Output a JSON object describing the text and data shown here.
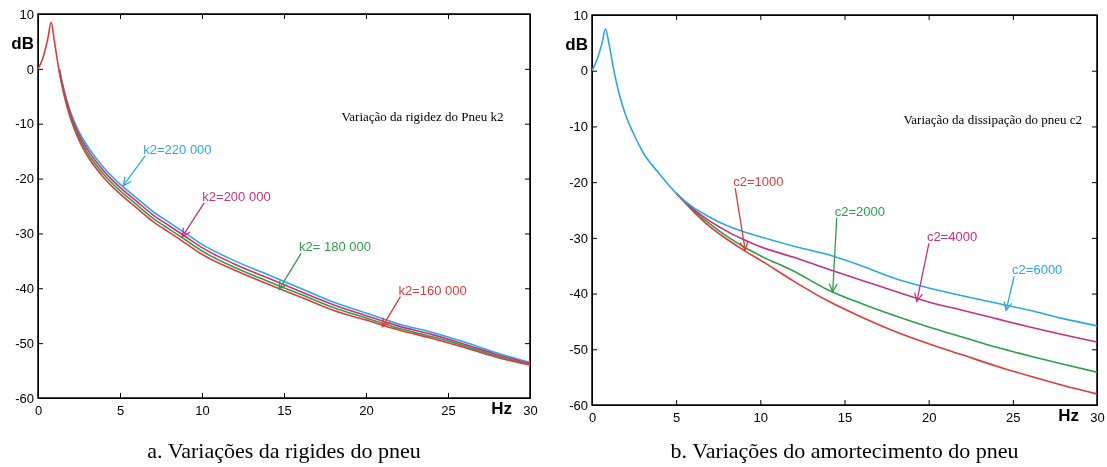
{
  "chart_data": [
    {
      "type": "line",
      "title": "a. Variações da rigides do pneu",
      "subtitle": "Variação da rigidez do Pneu k2",
      "xlabel": "Hz",
      "ylabel": "dB",
      "xlim": [
        0,
        30
      ],
      "ylim": [
        -60,
        10
      ],
      "xticks": [
        0,
        5,
        10,
        15,
        20,
        25,
        30
      ],
      "yticks": [
        -60,
        -50,
        -40,
        -30,
        -20,
        -10,
        0,
        10
      ],
      "marker": "none",
      "line_style": "solid",
      "x": [
        0,
        0.3,
        0.6,
        0.8,
        1,
        1.3,
        1.6,
        2,
        2.5,
        3,
        4,
        5,
        6,
        7,
        8,
        9,
        10,
        12,
        14,
        16,
        18,
        20,
        22,
        24,
        26,
        28,
        30
      ],
      "series": [
        {
          "color": "#2aa7e6",
          "values": [
            null,
            null,
            null,
            null,
            null,
            0,
            -4,
            -8,
            -11.5,
            -14,
            -18,
            -21,
            -23.5,
            -26,
            -28,
            -30,
            -32,
            -35,
            -37.5,
            -40,
            -42.5,
            -44.5,
            -46.5,
            -48,
            -49.8,
            -51.8,
            -53.5
          ]
        },
        {
          "color": "#c8307e",
          "values": [
            null,
            null,
            null,
            null,
            null,
            -0.2,
            -4.3,
            -8.4,
            -12,
            -14.6,
            -18.6,
            -21.6,
            -24.1,
            -26.6,
            -28.6,
            -30.6,
            -32.6,
            -35.6,
            -38.1,
            -40.6,
            -43,
            -45,
            -46.9,
            -48.4,
            -50.2,
            -52.1,
            -53.7
          ]
        },
        {
          "color": "#2e9e4a",
          "values": [
            null,
            null,
            null,
            null,
            null,
            -0.4,
            -4.6,
            -8.8,
            -12.5,
            -15.2,
            -19.2,
            -22.2,
            -24.7,
            -27.2,
            -29.2,
            -31.2,
            -33.2,
            -36.2,
            -38.7,
            -41.1,
            -43.5,
            -45.4,
            -47.3,
            -48.8,
            -50.5,
            -52.4,
            -53.9
          ]
        },
        {
          "color": "#e03a3a",
          "values": [
            0,
            2,
            5.5,
            8.5,
            5,
            -0.6,
            -4.9,
            -9.2,
            -13,
            -15.8,
            -19.8,
            -22.8,
            -25.3,
            -27.8,
            -29.8,
            -31.8,
            -33.8,
            -36.7,
            -39.2,
            -41.6,
            -44,
            -45.8,
            -47.6,
            -49.1,
            -50.8,
            -52.6,
            -54
          ]
        }
      ],
      "annotations": [
        {
          "text": "k2=220 000",
          "x": 5.2,
          "y": -21.3
        },
        {
          "text": "k2=200 000",
          "x": 8.8,
          "y": -30.6
        },
        {
          "text": "k2= 180 000",
          "x": 14.7,
          "y": -40.2
        },
        {
          "text": "k2=160 000",
          "x": 21,
          "y": -47
        }
      ]
    },
    {
      "type": "line",
      "title": "b. Variações do amortecimento do pneu",
      "subtitle": "Variação da dissipação do pneu c2",
      "xlabel": "Hz",
      "ylabel": "dB",
      "xlim": [
        0,
        30
      ],
      "ylim": [
        -60,
        10
      ],
      "xticks": [
        0,
        5,
        10,
        15,
        20,
        25,
        30
      ],
      "yticks": [
        -60,
        -50,
        -40,
        -30,
        -20,
        -10,
        0,
        10
      ],
      "marker": "none",
      "line_style": "solid",
      "x": [
        0,
        0.3,
        0.6,
        0.8,
        1,
        1.3,
        1.6,
        2,
        2.5,
        3,
        4,
        5,
        6,
        7,
        8,
        9,
        10,
        12,
        14,
        16,
        18,
        20,
        22,
        24,
        26,
        28,
        30
      ],
      "series": [
        {
          "color": "#e03a3a",
          "values": [
            null,
            null,
            null,
            null,
            null,
            null,
            null,
            null,
            null,
            null,
            null,
            -22,
            -25.2,
            -28,
            -30.2,
            -32.2,
            -34,
            -37.8,
            -41.3,
            -44.2,
            -46.8,
            -49,
            -51,
            -53,
            -54.8,
            -56.5,
            -58
          ]
        },
        {
          "color": "#2e9e4a",
          "values": [
            null,
            null,
            null,
            null,
            null,
            null,
            null,
            null,
            null,
            null,
            null,
            -22,
            -25,
            -27.5,
            -29.7,
            -31.6,
            -33.2,
            -36,
            -39.3,
            -41.8,
            -44,
            -46,
            -47.8,
            -49.6,
            -51.2,
            -52.7,
            -54.1
          ]
        },
        {
          "color": "#c8307e",
          "values": [
            null,
            null,
            null,
            null,
            null,
            null,
            null,
            null,
            null,
            null,
            null,
            -22,
            -24.8,
            -27,
            -28.8,
            -30.3,
            -31.6,
            -33.5,
            -35.6,
            -37.6,
            -39.6,
            -41.5,
            -43,
            -44.5,
            -46,
            -47.4,
            -48.7
          ]
        },
        {
          "color": "#2aa7e6",
          "values": [
            0,
            2,
            5,
            7.5,
            5,
            0,
            -4,
            -8,
            -11.5,
            -14.5,
            -18.5,
            -22,
            -24.5,
            -26.3,
            -27.8,
            -28.9,
            -29.8,
            -31.5,
            -33,
            -35,
            -37.3,
            -39,
            -40.4,
            -41.7,
            -43,
            -44.5,
            -45.8
          ]
        }
      ],
      "annotations": [
        {
          "text": "c2=1000",
          "x": 9.1,
          "y": -32.2
        },
        {
          "text": "c2=2000",
          "x": 14.3,
          "y": -39.7
        },
        {
          "text": "c2=4000",
          "x": 19.3,
          "y": -41.4
        },
        {
          "text": "c2=6000",
          "x": 24.6,
          "y": -43
        }
      ]
    }
  ]
}
